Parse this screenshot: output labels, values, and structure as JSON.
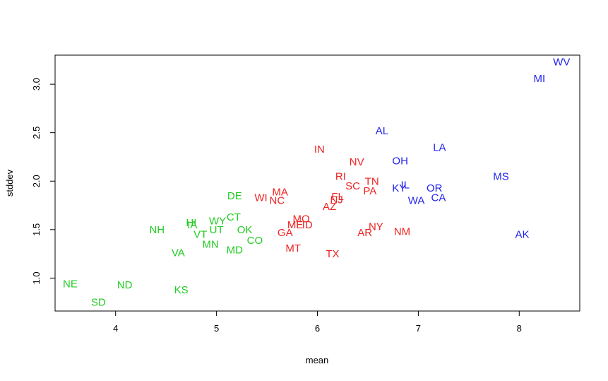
{
  "chart_data": {
    "type": "scatter",
    "xlabel": "mean",
    "ylabel": "stddev",
    "xlim": [
      3.4,
      8.6
    ],
    "ylim": [
      0.66,
      3.3
    ],
    "xticks": [
      {
        "value": 4,
        "label": "4"
      },
      {
        "value": 5,
        "label": "5"
      },
      {
        "value": 6,
        "label": "6"
      },
      {
        "value": 7,
        "label": "7"
      },
      {
        "value": 8,
        "label": "8"
      }
    ],
    "yticks": [
      {
        "value": 1.0,
        "label": "1.0"
      },
      {
        "value": 1.5,
        "label": "1.5"
      },
      {
        "value": 2.0,
        "label": "2.0"
      },
      {
        "value": 2.5,
        "label": "2.5"
      },
      {
        "value": 3.0,
        "label": "3.0"
      }
    ],
    "grid": false,
    "legend": "none",
    "colors": {
      "group1": "#22CC22",
      "group2": "#EE2222",
      "group3": "#2222EE"
    },
    "points": [
      {
        "label": "NE",
        "x": 3.55,
        "y": 0.94,
        "group": "group1"
      },
      {
        "label": "SD",
        "x": 3.83,
        "y": 0.75,
        "group": "group1"
      },
      {
        "label": "ND",
        "x": 4.09,
        "y": 0.93,
        "group": "group1"
      },
      {
        "label": "KS",
        "x": 4.65,
        "y": 0.88,
        "group": "group1"
      },
      {
        "label": "NH",
        "x": 4.41,
        "y": 1.5,
        "group": "group1"
      },
      {
        "label": "VA",
        "x": 4.62,
        "y": 1.26,
        "group": "group1"
      },
      {
        "label": "HI",
        "x": 4.75,
        "y": 1.57,
        "group": "group1"
      },
      {
        "label": "IA",
        "x": 4.76,
        "y": 1.55,
        "group": "group1"
      },
      {
        "label": "VT",
        "x": 4.84,
        "y": 1.45,
        "group": "group1"
      },
      {
        "label": "MN",
        "x": 4.94,
        "y": 1.35,
        "group": "group1"
      },
      {
        "label": "UT",
        "x": 5.0,
        "y": 1.5,
        "group": "group1"
      },
      {
        "label": "WY",
        "x": 5.01,
        "y": 1.59,
        "group": "group1"
      },
      {
        "label": "CT",
        "x": 5.17,
        "y": 1.63,
        "group": "group1"
      },
      {
        "label": "MD",
        "x": 5.18,
        "y": 1.29,
        "group": "group1"
      },
      {
        "label": "DE",
        "x": 5.18,
        "y": 1.85,
        "group": "group1"
      },
      {
        "label": "OK",
        "x": 5.28,
        "y": 1.5,
        "group": "group1"
      },
      {
        "label": "CO",
        "x": 5.38,
        "y": 1.39,
        "group": "group1"
      },
      {
        "label": "WI",
        "x": 5.44,
        "y": 1.83,
        "group": "group2"
      },
      {
        "label": "MA",
        "x": 5.63,
        "y": 1.89,
        "group": "group2"
      },
      {
        "label": "NC",
        "x": 5.6,
        "y": 1.8,
        "group": "group2"
      },
      {
        "label": "GA",
        "x": 5.68,
        "y": 1.47,
        "group": "group2"
      },
      {
        "label": "MT",
        "x": 5.76,
        "y": 1.31,
        "group": "group2"
      },
      {
        "label": "ME",
        "x": 5.78,
        "y": 1.55,
        "group": "group2"
      },
      {
        "label": "MO",
        "x": 5.84,
        "y": 1.61,
        "group": "group2"
      },
      {
        "label": "ID",
        "x": 5.9,
        "y": 1.55,
        "group": "group2"
      },
      {
        "label": "IN",
        "x": 6.02,
        "y": 2.33,
        "group": "group2"
      },
      {
        "label": "AZ",
        "x": 6.12,
        "y": 1.74,
        "group": "group2"
      },
      {
        "label": "TX",
        "x": 6.15,
        "y": 1.25,
        "group": "group2"
      },
      {
        "label": "FL",
        "x": 6.2,
        "y": 1.84,
        "group": "group2"
      },
      {
        "label": "NJ",
        "x": 6.19,
        "y": 1.81,
        "group": "group2"
      },
      {
        "label": "RI",
        "x": 6.23,
        "y": 2.05,
        "group": "group2"
      },
      {
        "label": "NV",
        "x": 6.39,
        "y": 2.2,
        "group": "group2"
      },
      {
        "label": "SC",
        "x": 6.35,
        "y": 1.95,
        "group": "group2"
      },
      {
        "label": "AR",
        "x": 6.47,
        "y": 1.47,
        "group": "group2"
      },
      {
        "label": "NY",
        "x": 6.58,
        "y": 1.53,
        "group": "group2"
      },
      {
        "label": "TN",
        "x": 6.54,
        "y": 2.0,
        "group": "group2"
      },
      {
        "label": "PA",
        "x": 6.52,
        "y": 1.9,
        "group": "group2"
      },
      {
        "label": "NM",
        "x": 6.84,
        "y": 1.48,
        "group": "group2"
      },
      {
        "label": "AL",
        "x": 6.64,
        "y": 2.52,
        "group": "group3"
      },
      {
        "label": "OH",
        "x": 6.82,
        "y": 2.21,
        "group": "group3"
      },
      {
        "label": "KY",
        "x": 6.81,
        "y": 1.93,
        "group": "group3"
      },
      {
        "label": "IL",
        "x": 6.87,
        "y": 1.96,
        "group": "group3"
      },
      {
        "label": "WA",
        "x": 6.98,
        "y": 1.8,
        "group": "group3"
      },
      {
        "label": "LA",
        "x": 7.21,
        "y": 2.35,
        "group": "group3"
      },
      {
        "label": "OR",
        "x": 7.16,
        "y": 1.93,
        "group": "group3"
      },
      {
        "label": "CA",
        "x": 7.2,
        "y": 1.83,
        "group": "group3"
      },
      {
        "label": "MS",
        "x": 7.82,
        "y": 2.05,
        "group": "group3"
      },
      {
        "label": "AK",
        "x": 8.03,
        "y": 1.45,
        "group": "group3"
      },
      {
        "label": "MI",
        "x": 8.2,
        "y": 3.06,
        "group": "group3"
      },
      {
        "label": "WV",
        "x": 8.42,
        "y": 3.23,
        "group": "group3"
      }
    ]
  }
}
